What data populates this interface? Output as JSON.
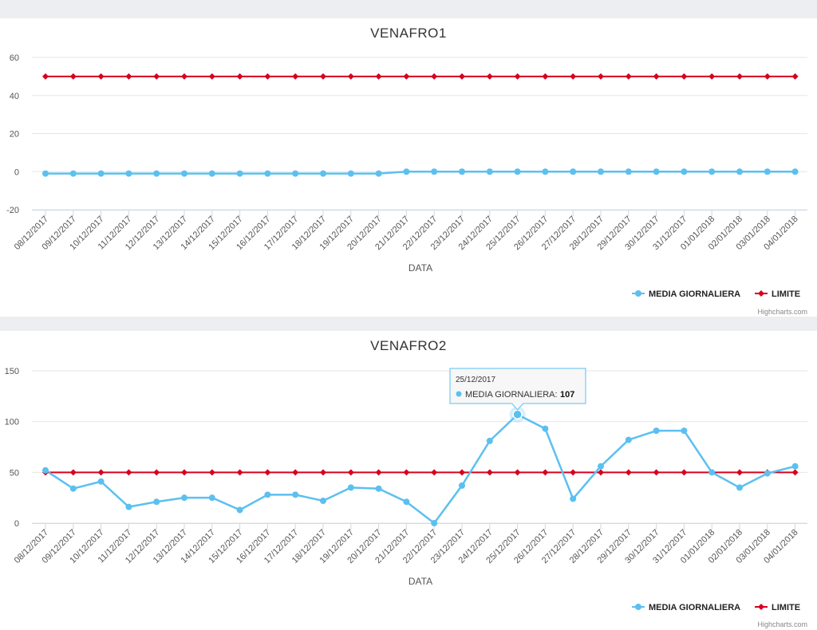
{
  "colors": {
    "media": "#5bc0f0",
    "limite": "#d7001e",
    "grid": "#e6e6e6",
    "axis": "#cfd8e6"
  },
  "chart_data": [
    {
      "type": "line",
      "title": "VENAFRO1",
      "xlabel": "DATA",
      "ylabel": "",
      "ylim": [
        -20,
        60
      ],
      "yticks": [
        -20,
        0,
        20,
        40,
        60
      ],
      "categories": [
        "08/12/2017",
        "09/12/2017",
        "10/12/2017",
        "11/12/2017",
        "12/12/2017",
        "13/12/2017",
        "14/12/2017",
        "15/12/2017",
        "16/12/2017",
        "17/12/2017",
        "18/12/2017",
        "19/12/2017",
        "20/12/2017",
        "21/12/2017",
        "22/12/2017",
        "23/12/2017",
        "24/12/2017",
        "25/12/2017",
        "26/12/2017",
        "27/12/2017",
        "28/12/2017",
        "29/12/2017",
        "30/12/2017",
        "31/12/2017",
        "01/01/2018",
        "02/01/2018",
        "03/01/2018",
        "04/01/2018"
      ],
      "series": [
        {
          "name": "MEDIA GIORNALIERA",
          "values": [
            -1,
            -1,
            -1,
            -1,
            -1,
            -1,
            -1,
            -1,
            -1,
            -1,
            -1,
            -1,
            -1,
            0,
            0,
            0,
            0,
            0,
            0,
            0,
            0,
            0,
            0,
            0,
            0,
            0,
            0,
            0
          ]
        },
        {
          "name": "LIMITE",
          "values": [
            50,
            50,
            50,
            50,
            50,
            50,
            50,
            50,
            50,
            50,
            50,
            50,
            50,
            50,
            50,
            50,
            50,
            50,
            50,
            50,
            50,
            50,
            50,
            50,
            50,
            50,
            50,
            50
          ]
        }
      ],
      "legend": [
        "MEDIA GIORNALIERA",
        "LIMITE"
      ],
      "credits": "Highcharts.com"
    },
    {
      "type": "line",
      "title": "VENAFRO2",
      "xlabel": "DATA",
      "ylabel": "",
      "ylim": [
        0,
        150
      ],
      "yticks": [
        0,
        50,
        100,
        150
      ],
      "categories": [
        "08/12/2017",
        "09/12/2017",
        "10/12/2017",
        "11/12/2017",
        "12/12/2017",
        "13/12/2017",
        "14/12/2017",
        "15/12/2017",
        "16/12/2017",
        "17/12/2017",
        "18/12/2017",
        "19/12/2017",
        "20/12/2017",
        "21/12/2017",
        "22/12/2017",
        "23/12/2017",
        "24/12/2017",
        "25/12/2017",
        "26/12/2017",
        "27/12/2017",
        "28/12/2017",
        "29/12/2017",
        "30/12/2017",
        "31/12/2017",
        "01/01/2018",
        "02/01/2018",
        "03/01/2018",
        "04/01/2018"
      ],
      "series": [
        {
          "name": "MEDIA GIORNALIERA",
          "values": [
            52,
            34,
            41,
            16,
            21,
            25,
            25,
            13,
            28,
            28,
            22,
            35,
            34,
            21,
            0,
            37,
            81,
            107,
            93,
            24,
            56,
            82,
            91,
            91,
            50,
            35,
            49,
            56
          ]
        },
        {
          "name": "LIMITE",
          "values": [
            50,
            50,
            50,
            50,
            50,
            50,
            50,
            50,
            50,
            50,
            50,
            50,
            50,
            50,
            50,
            50,
            50,
            50,
            50,
            50,
            50,
            50,
            50,
            50,
            50,
            50,
            50,
            50
          ]
        }
      ],
      "legend": [
        "MEDIA GIORNALIERA",
        "LIMITE"
      ],
      "credits": "Highcharts.com",
      "tooltip": {
        "index": 17,
        "date": "25/12/2017",
        "series": "MEDIA GIORNALIERA:",
        "value": "107"
      }
    }
  ]
}
